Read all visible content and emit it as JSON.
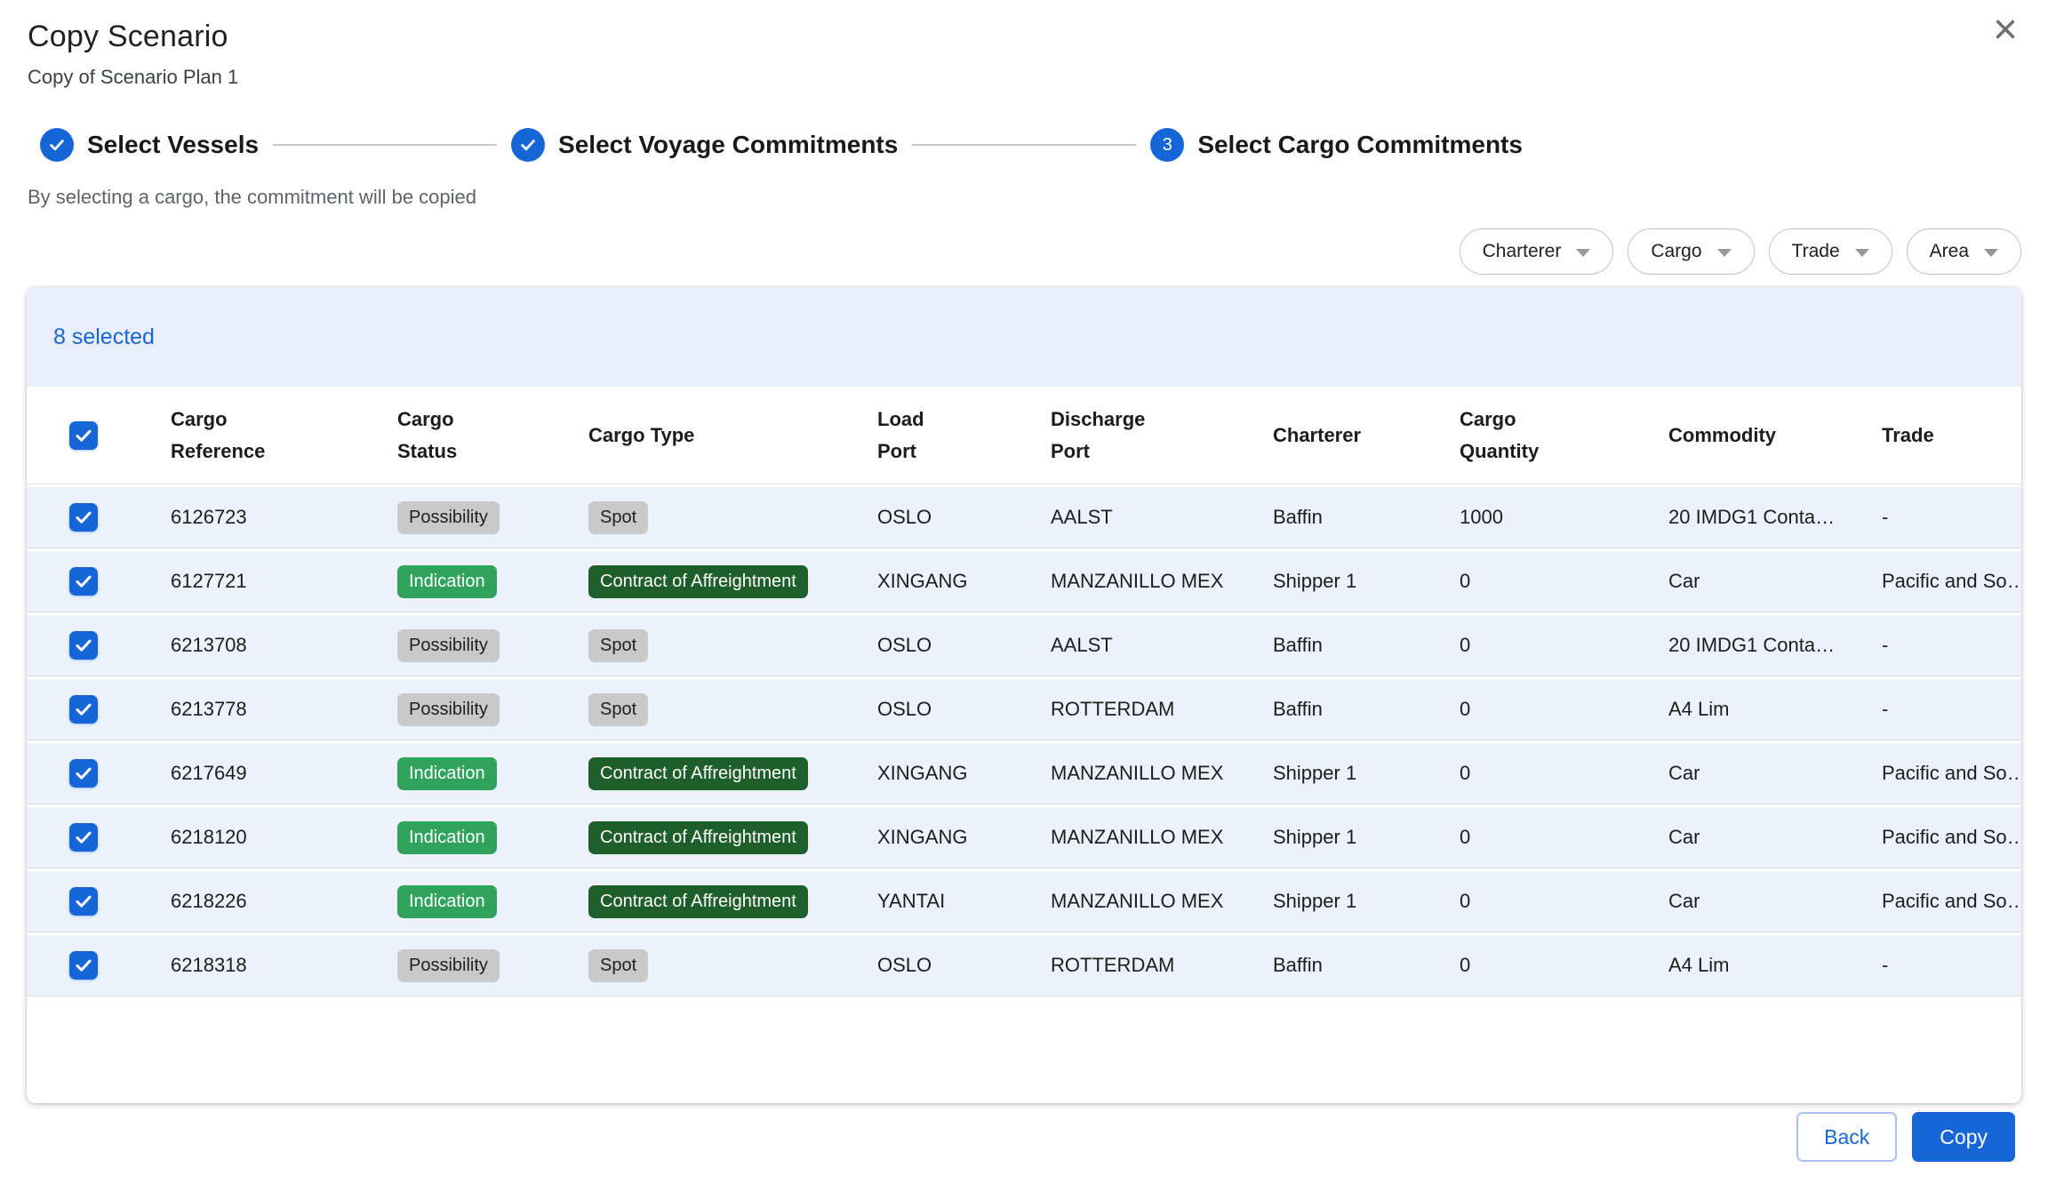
{
  "dialog": {
    "title": "Copy Scenario",
    "subtitle": "Copy of Scenario Plan 1",
    "close_glyph": "×"
  },
  "stepper": {
    "hint": "By selecting a cargo, the commitment will be copied",
    "steps": [
      {
        "label": "Select Vessels",
        "state": "complete"
      },
      {
        "label": "Select Voyage Commitments",
        "state": "complete"
      },
      {
        "label": "Select Cargo Commitments",
        "state": "current",
        "number": "3"
      }
    ]
  },
  "filters": [
    "Charterer",
    "Cargo",
    "Trade",
    "Area"
  ],
  "table": {
    "selected_summary": "8 selected",
    "select_all_checked": true,
    "columns": [
      {
        "lines": [
          "Cargo",
          "Reference"
        ]
      },
      {
        "lines": [
          "Cargo",
          "Status"
        ]
      },
      {
        "lines": [
          "Cargo Type"
        ]
      },
      {
        "lines": [
          "Load",
          "Port"
        ]
      },
      {
        "lines": [
          "Discharge",
          "Port"
        ]
      },
      {
        "lines": [
          "Charterer"
        ]
      },
      {
        "lines": [
          "Cargo",
          "Quantity"
        ]
      },
      {
        "lines": [
          "Commodity"
        ]
      },
      {
        "lines": [
          "Trade"
        ]
      }
    ],
    "rows": [
      {
        "checked": true,
        "cargo_reference": "6126723",
        "cargo_status": {
          "text": "Possibility",
          "variant": "gray"
        },
        "cargo_type": {
          "text": "Spot",
          "variant": "gray"
        },
        "load_port": "OSLO",
        "discharge_port": "AALST",
        "charterer": "Baffin",
        "cargo_quantity": "1000",
        "commodity": "20 IMDG1 Conta…",
        "trade": "-"
      },
      {
        "checked": true,
        "cargo_reference": "6127721",
        "cargo_status": {
          "text": "Indication",
          "variant": "green"
        },
        "cargo_type": {
          "text": "Contract of Affreightment",
          "variant": "darkgreen"
        },
        "load_port": "XINGANG",
        "discharge_port": "MANZANILLO MEX",
        "charterer": "Shipper 1",
        "cargo_quantity": "0",
        "commodity": "Car",
        "trade": "Pacific and So…"
      },
      {
        "checked": true,
        "cargo_reference": "6213708",
        "cargo_status": {
          "text": "Possibility",
          "variant": "gray"
        },
        "cargo_type": {
          "text": "Spot",
          "variant": "gray"
        },
        "load_port": "OSLO",
        "discharge_port": "AALST",
        "charterer": "Baffin",
        "cargo_quantity": "0",
        "commodity": "20 IMDG1 Conta…",
        "trade": "-"
      },
      {
        "checked": true,
        "cargo_reference": "6213778",
        "cargo_status": {
          "text": "Possibility",
          "variant": "gray"
        },
        "cargo_type": {
          "text": "Spot",
          "variant": "gray"
        },
        "load_port": "OSLO",
        "discharge_port": "ROTTERDAM",
        "charterer": "Baffin",
        "cargo_quantity": "0",
        "commodity": "A4 Lim",
        "trade": "-"
      },
      {
        "checked": true,
        "cargo_reference": "6217649",
        "cargo_status": {
          "text": "Indication",
          "variant": "green"
        },
        "cargo_type": {
          "text": "Contract of Affreightment",
          "variant": "darkgreen"
        },
        "load_port": "XINGANG",
        "discharge_port": "MANZANILLO MEX",
        "charterer": "Shipper 1",
        "cargo_quantity": "0",
        "commodity": "Car",
        "trade": "Pacific and So…"
      },
      {
        "checked": true,
        "cargo_reference": "6218120",
        "cargo_status": {
          "text": "Indication",
          "variant": "green"
        },
        "cargo_type": {
          "text": "Contract of Affreightment",
          "variant": "darkgreen"
        },
        "load_port": "XINGANG",
        "discharge_port": "MANZANILLO MEX",
        "charterer": "Shipper 1",
        "cargo_quantity": "0",
        "commodity": "Car",
        "trade": "Pacific and So…"
      },
      {
        "checked": true,
        "cargo_reference": "6218226",
        "cargo_status": {
          "text": "Indication",
          "variant": "green"
        },
        "cargo_type": {
          "text": "Contract of Affreightment",
          "variant": "darkgreen"
        },
        "load_port": "YANTAI",
        "discharge_port": "MANZANILLO MEX",
        "charterer": "Shipper 1",
        "cargo_quantity": "0",
        "commodity": "Car",
        "trade": "Pacific and So…"
      },
      {
        "checked": true,
        "cargo_reference": "6218318",
        "cargo_status": {
          "text": "Possibility",
          "variant": "gray"
        },
        "cargo_type": {
          "text": "Spot",
          "variant": "gray"
        },
        "load_port": "OSLO",
        "discharge_port": "ROTTERDAM",
        "charterer": "Baffin",
        "cargo_quantity": "0",
        "commodity": "A4 Lim",
        "trade": "-"
      }
    ]
  },
  "footer": {
    "back_label": "Back",
    "copy_label": "Copy"
  },
  "colors": {
    "accent_blue": "#1766D8",
    "selected_bar_bg": "#E9EEFB",
    "row_bg": "#EDF1FB",
    "badge_gray_bg": "#C9C9C9",
    "badge_green_bg": "#2FA35C",
    "badge_dark_green_bg": "#1D5E2B",
    "badge_light_text": "#FFFFFF",
    "connector_gray": "#C9C9C9"
  }
}
